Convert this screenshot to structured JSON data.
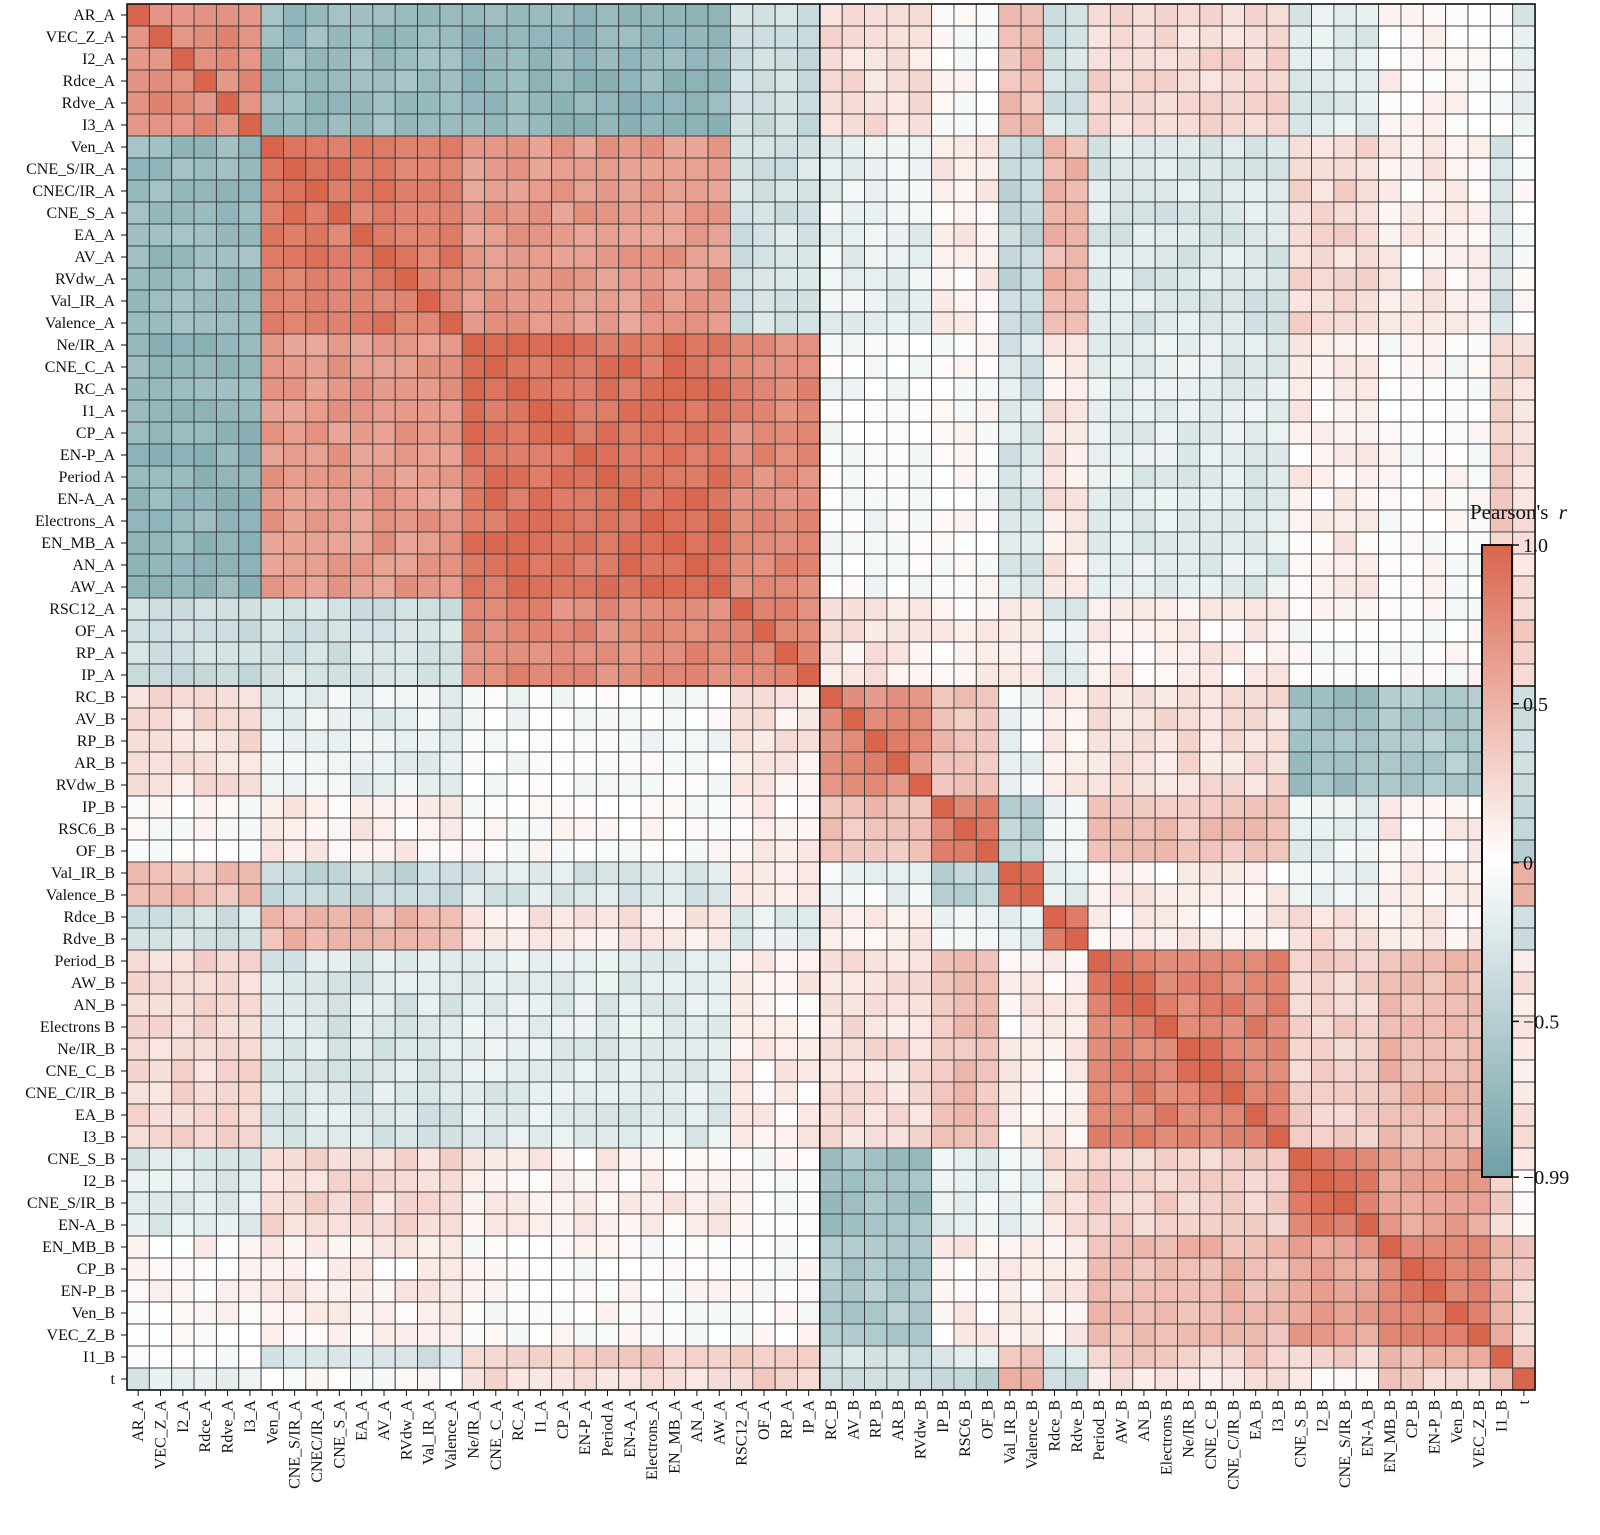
{
  "chart_data": {
    "type": "heatmap",
    "colorbar": {
      "title": "Pearson's",
      "title_var": "r",
      "min": -0.99,
      "max": 1.0,
      "tick_values": [
        1.0,
        0.5,
        0,
        -0.5,
        -0.99
      ],
      "tick_labels": [
        "1.0",
        "0.5",
        "0",
        "−0.5",
        "−0.99"
      ],
      "colors": {
        "negative": "#6f9fa5",
        "zero": "#ffffff",
        "positive": "#d9654d"
      }
    },
    "variables": [
      "AR_A",
      "VEC_Z_A",
      "I2_A",
      "Rdce_A",
      "Rdve_A",
      "I3_A",
      "Ven_A",
      "CNE_S/IR_A",
      "CNEC/IR_A",
      "CNE_S_A",
      "EA_A",
      "AV_A",
      "RVdw_A",
      "Val_IR_A",
      "Valence_A",
      "Ne/IR_A",
      "CNE_C_A",
      "RC_A",
      "I1_A",
      "CP_A",
      "EN-P_A",
      "Period A",
      "EN-A_A",
      "Electrons_A",
      "EN_MB_A",
      "AN_A",
      "AW_A",
      "RSC12_A",
      "OF_A",
      "RP_A",
      "IP_A",
      "RC_B",
      "AV_B",
      "RP_B",
      "AR_B",
      "RVdw_B",
      "IP_B",
      "RSC6_B",
      "OF_B",
      "Val_IR_B",
      "Valence_B",
      "Rdce_B",
      "Rdve_B",
      "Period_B",
      "AW_B",
      "AN_B",
      "Electrons B",
      "Ne/IR_B",
      "CNE_C_B",
      "CNE_C/IR_B",
      "EA_B",
      "I3_B",
      "CNE_S_B",
      "I2_B",
      "CNE_S/IR_B",
      "EN-A_B",
      "EN_MB_B",
      "CP_B",
      "EN-P_B",
      "Ven_B",
      "VEC_Z_B",
      "I1_B",
      "t"
    ],
    "x_tick_labels": [
      "AR_A",
      "VEC_Z_A",
      "I2_A",
      "Rdce_A",
      "Rdve_A",
      "I3_A",
      "Ven_A",
      "CNE_S/IR_A",
      "CNEC/IR_A",
      "CNE_S_A",
      "EA_A",
      "AV_A",
      "RVdw_A",
      "Val_IR_A",
      "Valence_A",
      "Ne/IR_A",
      "CNE_C_A",
      "RC_A",
      "I1_A",
      "CP_A",
      "EN-P_A",
      "Period A",
      "EN-A_A",
      "Electrons_A",
      "EN_MB_A",
      "AN_A",
      "AW_A",
      "RSC12_A",
      "OF_A",
      "RP_A",
      "IP_A",
      "RC_B",
      "AV_B",
      "RP_B",
      "AR_B",
      "RVdw_B",
      "IP_B",
      "RSC6_B",
      "OF_B",
      "Val_IR_B",
      "Valence_B",
      "Rdce_B",
      "Rdve_B",
      "Period_B",
      "AW_B",
      "AN_B",
      "Electrons B",
      "Ne/IR_B",
      "CNE_C_B",
      "CNE_C/IR_B",
      "EA_B",
      "I3_B",
      "CNE_S_B",
      "I2_B",
      "CNE_S/IR_B",
      "EN-A_B",
      "EN_MB_B",
      "CP_B",
      "EN-P_B",
      "Ven_B",
      "VEC_Z_B",
      "I1_B",
      "t"
    ],
    "groups": [
      {
        "start": 0,
        "end": 5,
        "key": "a1"
      },
      {
        "start": 6,
        "end": 14,
        "key": "a2"
      },
      {
        "start": 15,
        "end": 26,
        "key": "a3"
      },
      {
        "start": 27,
        "end": 30,
        "key": "a4"
      },
      {
        "start": 31,
        "end": 35,
        "key": "b1"
      },
      {
        "start": 36,
        "end": 38,
        "key": "b2"
      },
      {
        "start": 39,
        "end": 40,
        "key": "b3"
      },
      {
        "start": 41,
        "end": 42,
        "key": "b4"
      },
      {
        "start": 43,
        "end": 51,
        "key": "b5"
      },
      {
        "start": 52,
        "end": 55,
        "key": "b6"
      },
      {
        "start": 56,
        "end": 60,
        "key": "b7"
      },
      {
        "start": 61,
        "end": 61,
        "key": "b8"
      },
      {
        "start": 62,
        "end": 62,
        "key": "b9"
      }
    ],
    "group_within": {
      "a1": 0.75,
      "a2": 0.85,
      "a3": 0.9,
      "a4": 0.8,
      "b1": 0.7,
      "b2": 0.75,
      "b3": 0.9,
      "b4": 0.8,
      "b5": 0.8,
      "b6": 0.85,
      "b7": 0.75,
      "b8": 1.0,
      "b9": 1.0
    },
    "group_between": [
      [
        "a1",
        "a2",
        -0.7
      ],
      [
        "a1",
        "a3",
        -0.75
      ],
      [
        "a1",
        "a4",
        -0.35
      ],
      [
        "a2",
        "a3",
        0.65
      ],
      [
        "a2",
        "a4",
        -0.3
      ],
      [
        "a3",
        "a4",
        0.75
      ],
      [
        "a1",
        "b1",
        0.2
      ],
      [
        "a1",
        "b3",
        0.4
      ],
      [
        "a1",
        "b4",
        -0.3
      ],
      [
        "a1",
        "b5",
        0.25
      ],
      [
        "a1",
        "b6",
        -0.2
      ],
      [
        "a1",
        "b7",
        0.05
      ],
      [
        "a1",
        "b9",
        -0.2
      ],
      [
        "a2",
        "b1",
        -0.15
      ],
      [
        "a2",
        "b2",
        0.1
      ],
      [
        "a2",
        "b3",
        -0.4
      ],
      [
        "a2",
        "b4",
        0.45
      ],
      [
        "a2",
        "b5",
        -0.25
      ],
      [
        "a2",
        "b6",
        0.25
      ],
      [
        "a2",
        "b7",
        0.1
      ],
      [
        "a2",
        "b8",
        -0.3
      ],
      [
        "a3",
        "b1",
        -0.05
      ],
      [
        "a3",
        "b3",
        -0.25
      ],
      [
        "a3",
        "b4",
        0.15
      ],
      [
        "a3",
        "b5",
        -0.2
      ],
      [
        "a3",
        "b6",
        0.1
      ],
      [
        "a3",
        "b8",
        0.3
      ],
      [
        "a3",
        "b9",
        0.2
      ],
      [
        "a4",
        "b1",
        0.15
      ],
      [
        "a4",
        "b2",
        0.1
      ],
      [
        "a4",
        "b3",
        0.1
      ],
      [
        "a4",
        "b4",
        -0.2
      ],
      [
        "a4",
        "b5",
        0.1
      ],
      [
        "a4",
        "b8",
        0.25
      ],
      [
        "a4",
        "b9",
        0.3
      ],
      [
        "b1",
        "b2",
        0.4
      ],
      [
        "b1",
        "b3",
        -0.1
      ],
      [
        "b1",
        "b4",
        0.1
      ],
      [
        "b1",
        "b5",
        0.2
      ],
      [
        "b1",
        "b6",
        -0.65
      ],
      [
        "b1",
        "b7",
        -0.55
      ],
      [
        "b1",
        "b8",
        -0.3
      ],
      [
        "b1",
        "b9",
        -0.3
      ],
      [
        "b2",
        "b3",
        -0.45
      ],
      [
        "b2",
        "b4",
        -0.1
      ],
      [
        "b2",
        "b5",
        0.4
      ],
      [
        "b2",
        "b6",
        -0.15
      ],
      [
        "b2",
        "b7",
        0.1
      ],
      [
        "b2",
        "b8",
        -0.25
      ],
      [
        "b2",
        "b9",
        -0.45
      ],
      [
        "b3",
        "b4",
        -0.2
      ],
      [
        "b3",
        "b5",
        0.1
      ],
      [
        "b3",
        "b6",
        -0.15
      ],
      [
        "b3",
        "b7",
        0.1
      ],
      [
        "b3",
        "b8",
        0.3
      ],
      [
        "b3",
        "b9",
        0.5
      ],
      [
        "b4",
        "b5",
        0.1
      ],
      [
        "b4",
        "b6",
        0.2
      ],
      [
        "b4",
        "b7",
        0.1
      ],
      [
        "b4",
        "b8",
        -0.25
      ],
      [
        "b4",
        "b9",
        -0.3
      ],
      [
        "b5",
        "b6",
        0.3
      ],
      [
        "b5",
        "b7",
        0.45
      ],
      [
        "b5",
        "b8",
        0.3
      ],
      [
        "b5",
        "b9",
        0.15
      ],
      [
        "b6",
        "b7",
        0.6
      ],
      [
        "b6",
        "b8",
        0.3
      ],
      [
        "b6",
        "b9",
        0.1
      ],
      [
        "b7",
        "b8",
        0.5
      ],
      [
        "b7",
        "b9",
        0.3
      ],
      [
        "b8",
        "b9",
        0.4
      ]
    ],
    "pair_overrides": [
      [
        "CNE_S_A",
        "CNE_S/IR_A",
        0.95
      ],
      [
        "Ne/IR_A",
        "CNE_C_A",
        0.95
      ],
      [
        "RP_B",
        "AR_B",
        0.85
      ],
      [
        "RSC6_B",
        "OF_B",
        0.85
      ],
      [
        "Val_IR_B",
        "Valence_B",
        0.95
      ],
      [
        "Rdce_B",
        "Rdve_B",
        0.85
      ],
      [
        "AN_B",
        "AW_B",
        0.95
      ],
      [
        "Ne/IR_B",
        "CNE_C_B",
        0.95
      ],
      [
        "I2_B",
        "CNE_S/IR_B",
        0.95
      ],
      [
        "CP_B",
        "EN-P_B",
        0.9
      ]
    ],
    "grid": true,
    "legend_placement": "right"
  }
}
